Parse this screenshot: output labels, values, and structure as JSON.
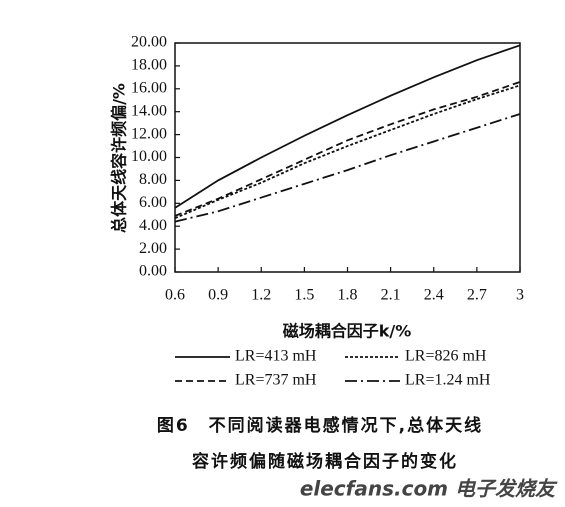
{
  "chart_data": {
    "type": "line",
    "y_label": "总体天线容许频偏/%",
    "x_label": "磁场耦合因子k/%",
    "caption": [
      "图6　不同阅读器电感情况下,总体天线",
      "容许频偏随磁场耦合因子的变化"
    ],
    "watermark": "elecfans.com 电子发烧友",
    "x": [
      0.6,
      0.9,
      1.2,
      1.5,
      1.8,
      2.1,
      2.4,
      2.7,
      3
    ],
    "xlim": [
      0.6,
      3
    ],
    "xticks": [
      0.6,
      0.9,
      1.2,
      1.5,
      1.8,
      2.1,
      2.4,
      2.7,
      3
    ],
    "ylim": [
      0,
      20
    ],
    "yticks": [
      {
        "value": 0,
        "label": "0.00"
      },
      {
        "value": 2,
        "label": "2.00"
      },
      {
        "value": 4,
        "label": "4.00"
      },
      {
        "value": 6,
        "label": "6.00"
      },
      {
        "value": 8,
        "label": "8.00"
      },
      {
        "value": 10,
        "label": "10.00"
      },
      {
        "value": 12,
        "label": "12.00"
      },
      {
        "value": 14,
        "label": "14.00"
      },
      {
        "value": 16,
        "label": "16.00"
      },
      {
        "value": 18,
        "label": "18.00"
      },
      {
        "value": 20,
        "label": "20.00"
      }
    ],
    "series": [
      {
        "name": "LR=413 mH",
        "color": "#111111",
        "dash": "solid",
        "values": [
          5.6,
          8.0,
          10.0,
          11.9,
          13.7,
          15.4,
          17.0,
          18.5,
          19.8
        ]
      },
      {
        "name": "LR=826 mH",
        "color": "#111111",
        "dash": "dotted",
        "values": [
          4.7,
          6.3,
          7.8,
          9.5,
          11.0,
          12.4,
          13.8,
          15.1,
          16.3
        ]
      },
      {
        "name": "LR=737 mH",
        "color": "#111111",
        "dash": "dashed",
        "values": [
          4.9,
          6.4,
          8.1,
          9.8,
          11.5,
          12.9,
          14.2,
          15.3,
          16.6
        ]
      },
      {
        "name": "LR=1.24 mH",
        "color": "#111111",
        "dash": "dashdot",
        "values": [
          4.4,
          5.3,
          6.5,
          7.7,
          8.9,
          10.2,
          11.4,
          12.6,
          13.8
        ]
      }
    ]
  }
}
